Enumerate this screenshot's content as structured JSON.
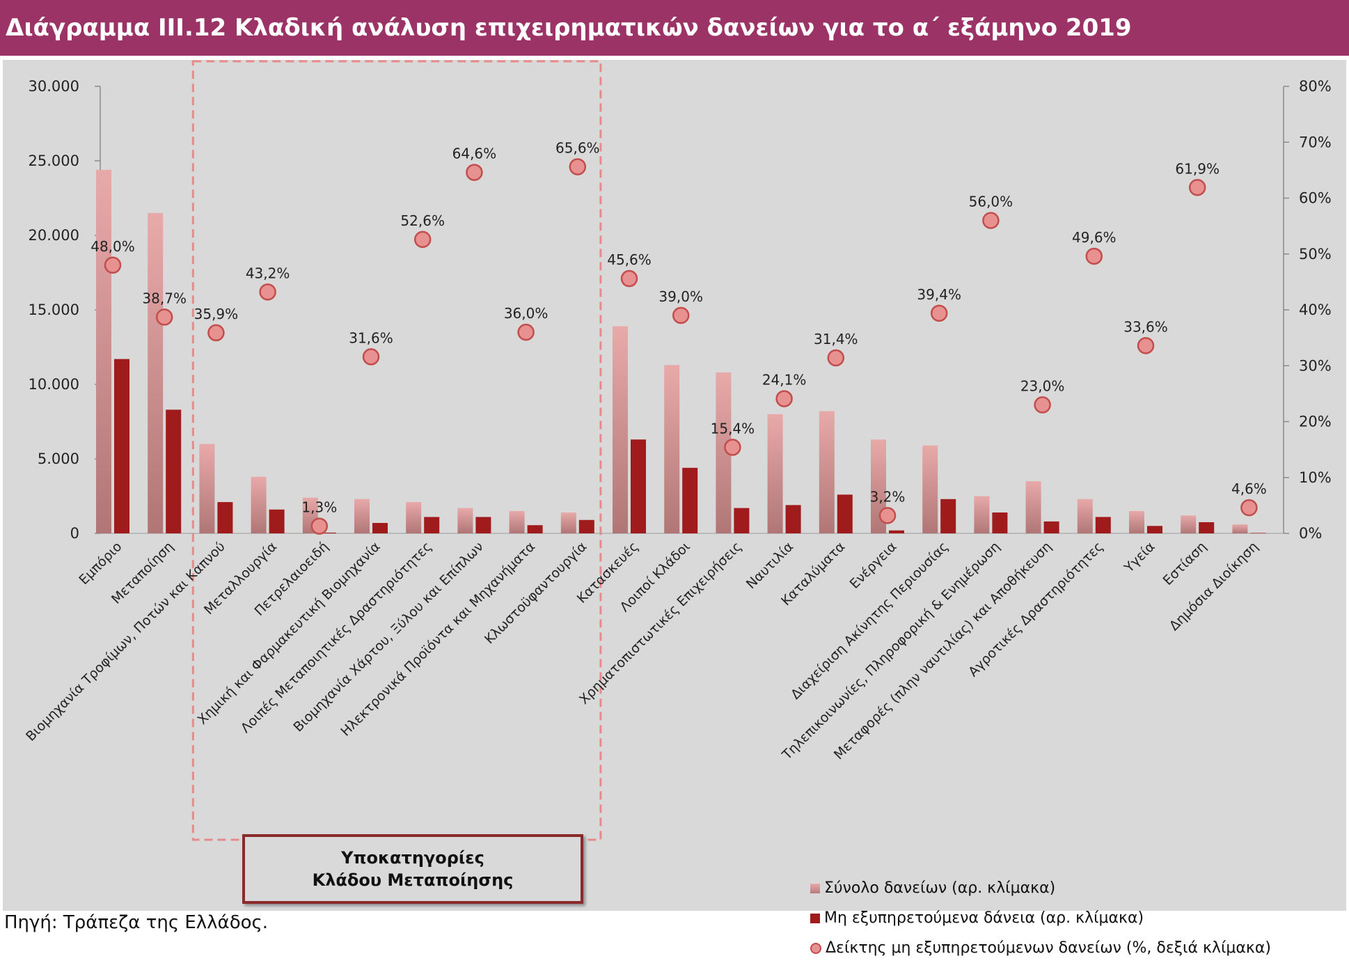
{
  "title": "Διάγραμμα ΙΙΙ.12 Κλαδική ανάλυση επιχειρηματικών δανείων για το α΄ εξάμηνο 2019",
  "source": "Πηγή: Τράπεζα της Ελλάδος.",
  "subcategory_box": {
    "line1": "Υποκατηγορίες",
    "line2": "Κλάδου Μεταποίησης"
  },
  "colors": {
    "title_bg": "#9b3366",
    "plot_bg": "#d9d9d9",
    "total_bar_top": "#e8a9a9",
    "total_bar_bottom": "#b07676",
    "npl_bar": "#a01c1c",
    "ratio_marker": "#e89191",
    "ratio_marker_edge": "#c24d4d",
    "highlight_box": "#e88a8a"
  },
  "chart_data": {
    "type": "bar",
    "categories": [
      "Εμπόριο",
      "Μεταποίηση",
      "Βιομηχανία Τροφίμων, Ποτών και Καπνού",
      "Μεταλλουργία",
      "Πετρελαιοειδή",
      "Χημική και Φαρμακευτική Βιομηχανία",
      "Λοιπές Μεταποιητικές Δραστηριότητες",
      "Βιομηχανία Χάρτου, Ξύλου και Επίπλων",
      "Ηλεκτρονικά Προϊόντα και Μηχανήματα",
      "Κλωστοϋφαντουργία",
      "Κατασκευές",
      "Λοιποί Κλάδοι",
      "Χρηματοπιστωτικές Επιχειρήσεις",
      "Ναυτιλία",
      "Καταλύματα",
      "Ενέργεια",
      "Διαχείριση Ακίνητης Περιουσίας",
      "Τηλεπικοινωνίες, Πληροφορική & Ενημέρωση",
      "Μεταφορές (πλην ναυτιλίας) και Αποθήκευση",
      "Αγροτικές Δραστηριότητες",
      "Υγεία",
      "Εστίαση",
      "Δημόσια Διοίκηση"
    ],
    "series": [
      {
        "name": "Σύνολο δανείων (αρ. κλίμακα)",
        "axis": "left",
        "values": [
          24400,
          21500,
          6000,
          3800,
          2400,
          2300,
          2100,
          1700,
          1500,
          1400,
          13900,
          11300,
          10800,
          8000,
          8200,
          6300,
          5900,
          2500,
          3500,
          2300,
          1500,
          1200,
          600
        ]
      },
      {
        "name": "Μη εξυπηρετούμενα δάνεια (αρ. κλίμακα)",
        "axis": "left",
        "values": [
          11700,
          8300,
          2100,
          1600,
          50,
          700,
          1100,
          1100,
          550,
          900,
          6300,
          4400,
          1700,
          1900,
          2600,
          200,
          2300,
          1400,
          800,
          1100,
          500,
          750,
          30
        ]
      },
      {
        "name": "Δείκτης μη εξυπηρετούμενων δανείων (%, δεξιά κλίμακα)",
        "axis": "right",
        "values": [
          48.0,
          38.7,
          35.9,
          43.2,
          1.3,
          31.6,
          52.6,
          64.6,
          36.0,
          65.6,
          45.6,
          39.0,
          15.4,
          24.1,
          31.4,
          3.2,
          39.4,
          56.0,
          23.0,
          49.6,
          33.6,
          61.9,
          4.6
        ],
        "labels": [
          "48,0%",
          "38,7%",
          "35,9%",
          "43,2%",
          "1,3%",
          "31,6%",
          "52,6%",
          "64,6%",
          "36,0%",
          "65,6%",
          "45,6%",
          "39,0%",
          "15,4%",
          "24,1%",
          "31,4%",
          "3,2%",
          "39,4%",
          "56,0%",
          "23,0%",
          "49,6%",
          "33,6%",
          "61,9%",
          "4,6%"
        ]
      }
    ],
    "y_left": {
      "lim": [
        0,
        30000
      ],
      "ticks": [
        0,
        5000,
        10000,
        15000,
        20000,
        25000,
        30000
      ],
      "tick_labels": [
        "0",
        "5.000",
        "10.000",
        "15.000",
        "20.000",
        "25.000",
        "30.000"
      ]
    },
    "y_right": {
      "lim": [
        0,
        80
      ],
      "ticks": [
        0,
        10,
        20,
        30,
        40,
        50,
        60,
        70,
        80
      ],
      "tick_labels": [
        "0%",
        "10%",
        "20%",
        "30%",
        "40%",
        "50%",
        "60%",
        "70%",
        "80%"
      ]
    },
    "highlight_range": [
      2,
      9
    ],
    "grid": false,
    "legend_position": "bottom-right"
  }
}
